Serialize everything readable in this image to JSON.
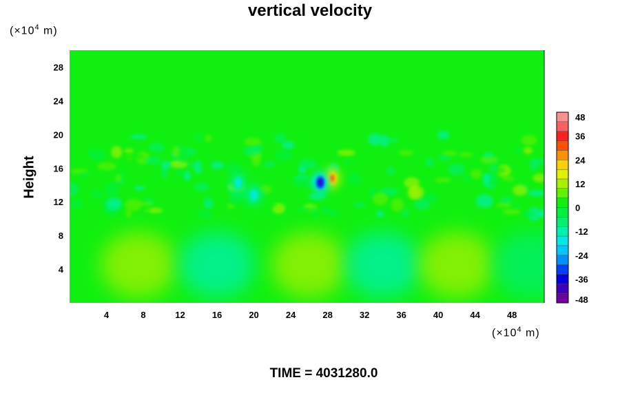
{
  "chart_data": {
    "type": "heatmap",
    "title": "vertical velocity",
    "ylabel": "Height",
    "xunit": "(×10⁴ m)",
    "yunit": "(×10⁴ m)",
    "footer": "TIME = 4031280.0",
    "xlim": [
      0,
      51.5
    ],
    "ylim": [
      0,
      30
    ],
    "xticks": [
      4,
      8,
      12,
      16,
      20,
      24,
      28,
      32,
      36,
      40,
      44,
      48
    ],
    "yticks": [
      4,
      8,
      12,
      16,
      20,
      24,
      28
    ],
    "colorbar": {
      "range": [
        -48,
        48
      ],
      "ticks": [
        48,
        36,
        24,
        12,
        0,
        -12,
        -24,
        -36,
        -48
      ],
      "colors": [
        "#7000a0",
        "#4000c0",
        "#0000e0",
        "#0040ff",
        "#0090ff",
        "#00c8ff",
        "#00e8e8",
        "#00f0b0",
        "#00f070",
        "#00f040",
        "#10f010",
        "#60f000",
        "#a8f000",
        "#e0f000",
        "#ffd000",
        "#ff9000",
        "#ff5000",
        "#ff2020",
        "#ff6060",
        "#ff9090"
      ]
    },
    "features": [
      {
        "type": "updraft",
        "x": 28.5,
        "y": 14.8,
        "value": 30
      },
      {
        "type": "downdraft",
        "x": 27.2,
        "y": 14.3,
        "value": -40
      },
      {
        "type": "downdraft",
        "x": 18.3,
        "y": 14.3,
        "value": -18
      },
      {
        "type": "downdraft",
        "x": 20.0,
        "y": 12.8,
        "value": -15
      }
    ]
  }
}
